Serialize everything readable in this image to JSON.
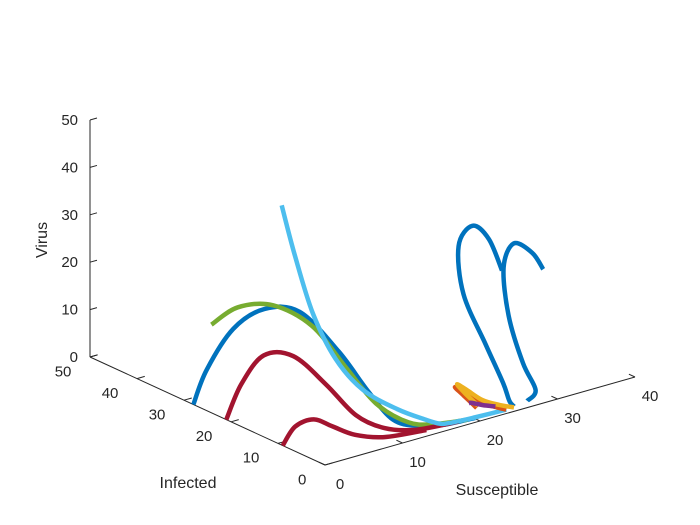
{
  "chart_data": {
    "type": "line3d",
    "axes": {
      "x": {
        "label": "Susceptible",
        "ticks": [
          0,
          10,
          20,
          30,
          40
        ],
        "range": [
          0,
          40
        ]
      },
      "y": {
        "label": "Infected",
        "ticks": [
          0,
          10,
          20,
          30,
          40,
          50
        ],
        "range": [
          0,
          50
        ]
      },
      "z": {
        "label": "Virus",
        "ticks": [
          0,
          10,
          20,
          30,
          40,
          50
        ],
        "range": [
          0,
          50
        ]
      }
    },
    "grid": false,
    "series": [
      {
        "color": "#0072BD",
        "points": [
          [
            0,
            28,
            0
          ],
          [
            0.5,
            26,
            8
          ],
          [
            1.5,
            22,
            18
          ],
          [
            2.5,
            17,
            24
          ],
          [
            4,
            12,
            25
          ],
          [
            6,
            7,
            18
          ],
          [
            8,
            4,
            10
          ],
          [
            10,
            2,
            4
          ],
          [
            13,
            1.5,
            1.5
          ],
          [
            16,
            1.2,
            0.5
          ],
          [
            20,
            1,
            0.2
          ]
        ]
      },
      {
        "color": "#77AC30",
        "points": [
          [
            0.5,
            25,
            18
          ],
          [
            1.5,
            21,
            23
          ],
          [
            3,
            16,
            25
          ],
          [
            5,
            11,
            22
          ],
          [
            7,
            7,
            14
          ],
          [
            9,
            4,
            7
          ],
          [
            12,
            2,
            2.5
          ],
          [
            15,
            1.5,
            1
          ],
          [
            19,
            1,
            0.3
          ]
        ]
      },
      {
        "color": "#A2142F",
        "points": [
          [
            0,
            21,
            0
          ],
          [
            0.7,
            19,
            8
          ],
          [
            1.8,
            16,
            15
          ],
          [
            3.2,
            12,
            16
          ],
          [
            5,
            8,
            11
          ],
          [
            7,
            5,
            5
          ],
          [
            9.5,
            3,
            2
          ],
          [
            13,
            2,
            0.5
          ],
          [
            18,
            1.3,
            0.2
          ]
        ]
      },
      {
        "color": "#A2142F",
        "points": [
          [
            0,
            9,
            0
          ],
          [
            1,
            8,
            4
          ],
          [
            2.5,
            6.5,
            5.5
          ],
          [
            4,
            5,
            4
          ],
          [
            6,
            3.5,
            2
          ],
          [
            9,
            2.2,
            0.7
          ],
          [
            14,
            1.5,
            0.2
          ]
        ]
      },
      {
        "color": "#4DBEEE",
        "points": [
          [
            12,
            29,
            36
          ],
          [
            12.5,
            27,
            26
          ],
          [
            13,
            24,
            15
          ],
          [
            13.5,
            20,
            7
          ],
          [
            14,
            15,
            2.5
          ],
          [
            14.8,
            9,
            0.8
          ],
          [
            15.5,
            4,
            0.5
          ],
          [
            16,
            2,
            0.4
          ],
          [
            17,
            1.5,
            0.3
          ],
          [
            20,
            1.2,
            0.2
          ],
          [
            24,
            1,
            0.1
          ]
        ]
      },
      {
        "color": "#0072BD",
        "points": [
          [
            38,
            25,
            12
          ],
          [
            37.5,
            27,
            18
          ],
          [
            36,
            28,
            21
          ],
          [
            33,
            26,
            19
          ],
          [
            30,
            20,
            13
          ],
          [
            28,
            12,
            7
          ],
          [
            26,
            5,
            3
          ],
          [
            25,
            2,
            1
          ],
          [
            25,
            1,
            0.3
          ]
        ]
      },
      {
        "color": "#0072BD",
        "points": [
          [
            41.5,
            22,
            12
          ],
          [
            41,
            23.5,
            15
          ],
          [
            39.5,
            25,
            17
          ],
          [
            37,
            23,
            14
          ],
          [
            34,
            17,
            8
          ],
          [
            31,
            9,
            3
          ],
          [
            29,
            3,
            1
          ],
          [
            27,
            1.5,
            0.3
          ]
        ]
      },
      {
        "color": "#D95319",
        "points": [
          [
            22,
            4,
            0
          ],
          [
            21.5,
            6,
            2
          ],
          [
            21,
            7,
            3.5
          ],
          [
            21.6,
            6,
            2.5
          ],
          [
            22.6,
            4,
            0.8
          ],
          [
            23.5,
            2,
            0.3
          ],
          [
            24,
            1,
            0.1
          ]
        ]
      },
      {
        "color": "#EDB120",
        "points": [
          [
            22.5,
            4.5,
            0
          ],
          [
            22,
            6.5,
            2
          ],
          [
            21.6,
            7.5,
            3.6
          ],
          [
            22.2,
            6.5,
            2.6
          ],
          [
            23,
            4.5,
            1
          ],
          [
            24,
            2.5,
            0.4
          ],
          [
            25,
            1,
            0.1
          ]
        ]
      },
      {
        "color": "#7E2F8E",
        "points": [
          [
            21,
            4,
            1.5
          ],
          [
            21.5,
            4.2,
            1.2
          ],
          [
            22.5,
            3.5,
            0.6
          ],
          [
            23.5,
            2.5,
            0.3
          ]
        ]
      }
    ]
  }
}
